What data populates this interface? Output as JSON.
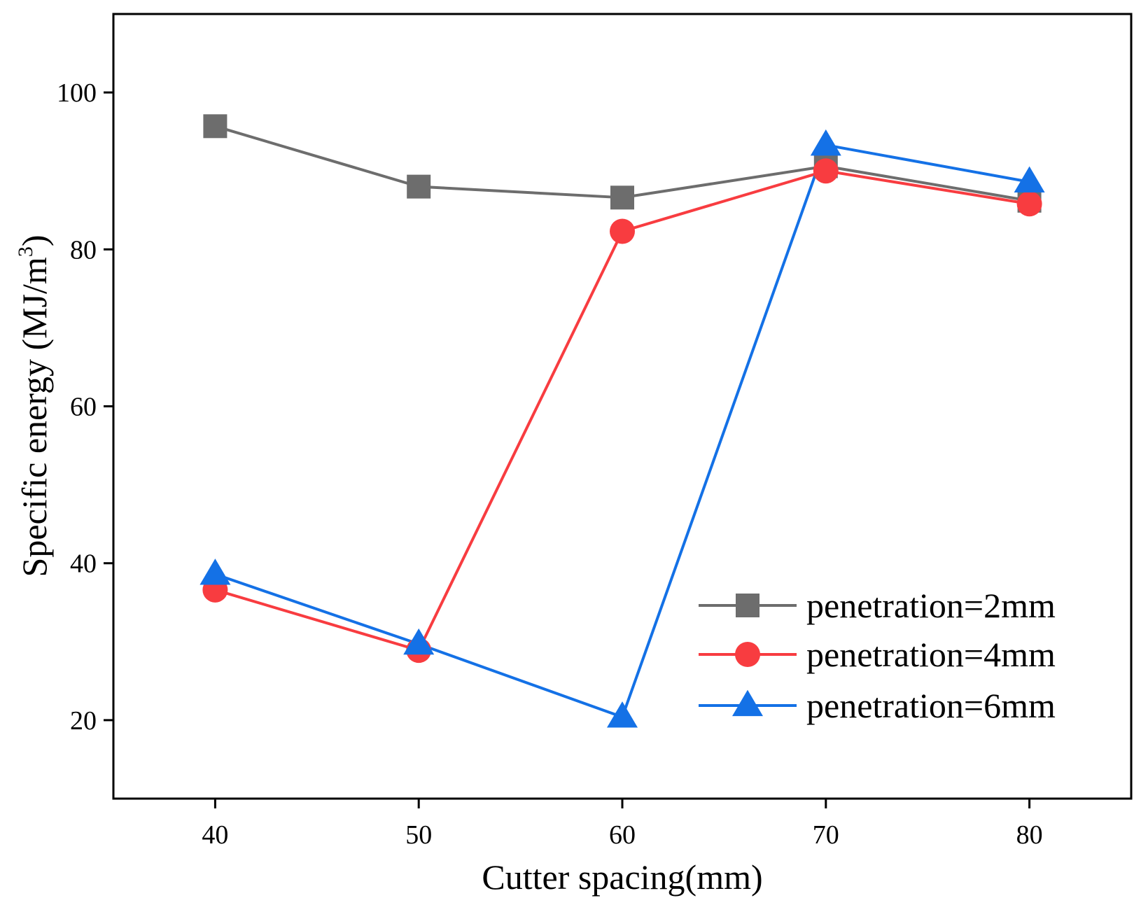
{
  "chart_data": {
    "type": "line",
    "title": "",
    "xlabel": "Cutter spacing(mm)",
    "ylabel": "Specific energy (MJ/m",
    "ylabel_superscript": "3",
    "ylabel_close": ")",
    "x": [
      40,
      50,
      60,
      70,
      80
    ],
    "xlim": [
      35,
      85
    ],
    "ylim": [
      10,
      110
    ],
    "xticks": [
      40,
      50,
      60,
      70,
      80
    ],
    "yticks": [
      20,
      40,
      60,
      80,
      100
    ],
    "grid": false,
    "legend_position": "bottom-right",
    "series": [
      {
        "name": "penetration=2mm",
        "marker": "square",
        "color": "#6d6d6d",
        "values": [
          95.7,
          88.0,
          86.6,
          90.6,
          86.2
        ]
      },
      {
        "name": "penetration=4mm",
        "marker": "circle",
        "color": "#f83c40",
        "values": [
          36.6,
          28.9,
          82.3,
          90.0,
          85.8
        ]
      },
      {
        "name": "penetration=6mm",
        "marker": "triangle",
        "color": "#1471e6",
        "values": [
          38.6,
          29.7,
          20.4,
          93.3,
          88.6
        ]
      }
    ]
  }
}
